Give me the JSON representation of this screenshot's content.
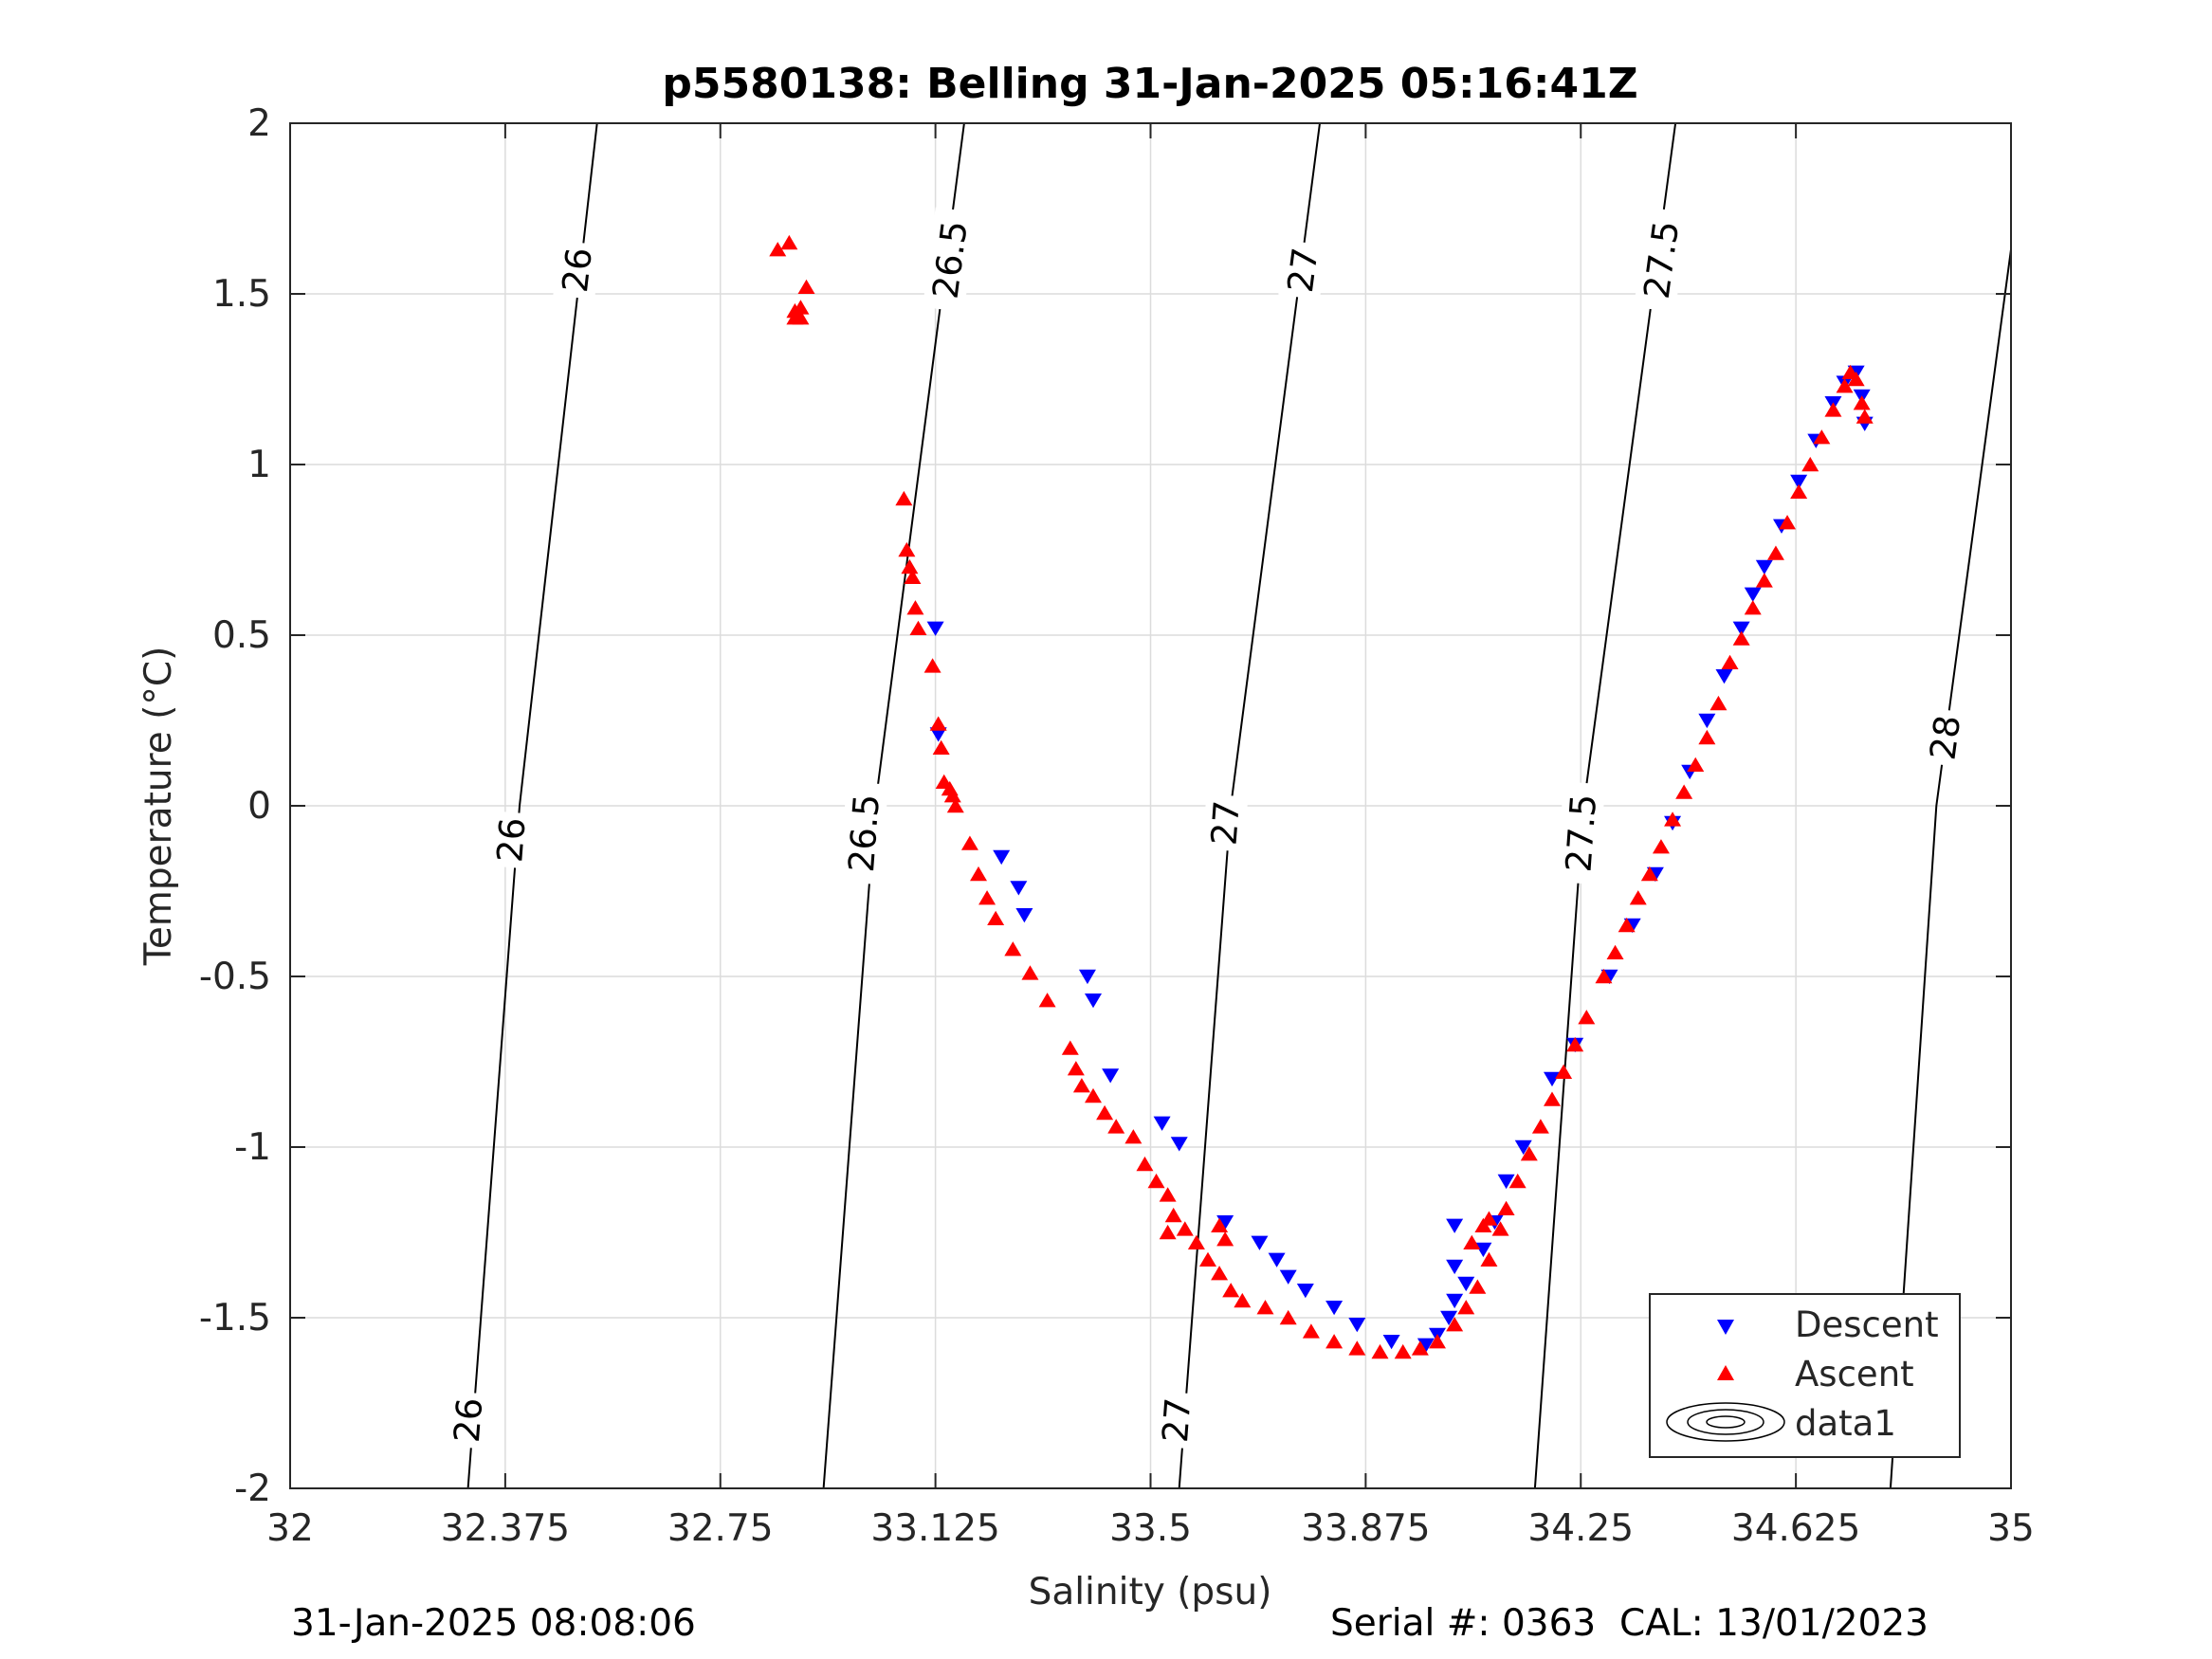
{
  "footer": {
    "left": "31-Jan-2025 08:08:06",
    "right": "Serial #: 0363  CAL: 13/01/2023"
  },
  "colors": {
    "descent": "#0000ff",
    "ascent": "#ff0000",
    "contour": "#000000",
    "grid": "#dcdcdc"
  },
  "chart_data": {
    "type": "scatter",
    "title": "p5580138: Belling 31-Jan-2025 05:16:41Z",
    "xlabel": "Salinity (psu)",
    "ylabel": "Temperature (°C)",
    "xlim": [
      32,
      35
    ],
    "ylim": [
      -2,
      2
    ],
    "x_ticks": [
      "32",
      "32.375",
      "32.75",
      "33.125",
      "33.5",
      "33.875",
      "34.25",
      "34.625",
      "35"
    ],
    "y_ticks": [
      "2",
      "1.5",
      "1",
      "0.5",
      "0",
      "-0.5",
      "-1",
      "-1.5",
      "-2"
    ],
    "grid": true,
    "legend": {
      "position": "bottom-right",
      "entries": [
        "Descent",
        "Ascent",
        "data1"
      ]
    },
    "contours": [
      {
        "level": "26",
        "points": [
          [
            32.31,
            -2.0
          ],
          [
            32.4,
            0.0
          ],
          [
            32.535,
            2.0
          ]
        ],
        "label_positions": [
          [
            32.31,
            -1.8
          ],
          [
            32.385,
            -0.1
          ],
          [
            32.5,
            1.57
          ]
        ]
      },
      {
        "level": "26.5",
        "points": [
          [
            32.93,
            -2.0
          ],
          [
            33.02,
            0.0
          ],
          [
            33.175,
            2.0
          ]
        ],
        "label_positions": [
          [
            33.0,
            -0.08
          ],
          [
            33.15,
            1.6
          ]
        ]
      },
      {
        "level": "27",
        "points": [
          [
            33.55,
            -2.0
          ],
          [
            33.64,
            0.0
          ],
          [
            33.795,
            2.0
          ]
        ],
        "label_positions": [
          [
            33.545,
            -1.8
          ],
          [
            33.63,
            -0.05
          ],
          [
            33.765,
            1.57
          ]
        ]
      },
      {
        "level": "27.5",
        "points": [
          [
            34.17,
            -2.0
          ],
          [
            34.255,
            0.0
          ],
          [
            34.415,
            2.0
          ]
        ],
        "label_positions": [
          [
            34.25,
            -0.08
          ],
          [
            34.39,
            1.6
          ]
        ]
      },
      {
        "level": "28",
        "points": [
          [
            34.79,
            -2.0
          ],
          [
            34.87,
            0.0
          ],
          [
            35.0,
            1.63
          ]
        ],
        "label_positions": [
          [
            34.795,
            -1.55
          ],
          [
            34.885,
            0.2
          ]
        ]
      }
    ],
    "series": [
      {
        "name": "Descent",
        "marker": "triangle-down",
        "points": [
          [
            33.125,
            0.52
          ],
          [
            33.13,
            0.21
          ],
          [
            33.24,
            -0.15
          ],
          [
            33.27,
            -0.24
          ],
          [
            33.28,
            -0.32
          ],
          [
            33.39,
            -0.5
          ],
          [
            33.4,
            -0.57
          ],
          [
            33.43,
            -0.79
          ],
          [
            33.52,
            -0.93
          ],
          [
            33.55,
            -0.99
          ],
          [
            33.63,
            -1.22
          ],
          [
            33.69,
            -1.28
          ],
          [
            33.72,
            -1.33
          ],
          [
            33.74,
            -1.38
          ],
          [
            33.77,
            -1.42
          ],
          [
            33.82,
            -1.47
          ],
          [
            33.86,
            -1.52
          ],
          [
            33.92,
            -1.57
          ],
          [
            33.98,
            -1.58
          ],
          [
            34.0,
            -1.55
          ],
          [
            34.02,
            -1.5
          ],
          [
            34.03,
            -1.45
          ],
          [
            34.05,
            -1.4
          ],
          [
            34.08,
            -1.3
          ],
          [
            34.1,
            -1.22
          ],
          [
            34.03,
            -1.23
          ],
          [
            34.03,
            -1.35
          ],
          [
            34.12,
            -1.1
          ],
          [
            34.15,
            -1.0
          ],
          [
            34.2,
            -0.8
          ],
          [
            34.24,
            -0.7
          ],
          [
            34.3,
            -0.5
          ],
          [
            34.34,
            -0.35
          ],
          [
            34.38,
            -0.2
          ],
          [
            34.41,
            -0.05
          ],
          [
            34.44,
            0.1
          ],
          [
            34.47,
            0.25
          ],
          [
            34.5,
            0.38
          ],
          [
            34.53,
            0.52
          ],
          [
            34.55,
            0.62
          ],
          [
            34.57,
            0.7
          ],
          [
            34.6,
            0.82
          ],
          [
            34.63,
            0.95
          ],
          [
            34.66,
            1.07
          ],
          [
            34.69,
            1.18
          ],
          [
            34.71,
            1.24
          ],
          [
            34.73,
            1.27
          ],
          [
            34.74,
            1.2
          ],
          [
            34.745,
            1.12
          ]
        ]
      },
      {
        "name": "Ascent",
        "marker": "triangle-up",
        "points": [
          [
            32.85,
            1.63
          ],
          [
            32.87,
            1.65
          ],
          [
            32.88,
            1.43
          ],
          [
            32.88,
            1.45
          ],
          [
            32.89,
            1.46
          ],
          [
            32.9,
            1.52
          ],
          [
            32.89,
            1.43
          ],
          [
            33.07,
            0.9
          ],
          [
            33.075,
            0.75
          ],
          [
            33.08,
            0.7
          ],
          [
            33.085,
            0.67
          ],
          [
            33.09,
            0.58
          ],
          [
            33.095,
            0.52
          ],
          [
            33.12,
            0.41
          ],
          [
            33.13,
            0.24
          ],
          [
            33.135,
            0.17
          ],
          [
            33.14,
            0.07
          ],
          [
            33.15,
            0.05
          ],
          [
            33.155,
            0.03
          ],
          [
            33.16,
            0.0
          ],
          [
            33.185,
            -0.11
          ],
          [
            33.2,
            -0.2
          ],
          [
            33.215,
            -0.27
          ],
          [
            33.23,
            -0.33
          ],
          [
            33.26,
            -0.42
          ],
          [
            33.29,
            -0.49
          ],
          [
            33.32,
            -0.57
          ],
          [
            33.36,
            -0.71
          ],
          [
            33.37,
            -0.77
          ],
          [
            33.38,
            -0.82
          ],
          [
            33.4,
            -0.85
          ],
          [
            33.42,
            -0.9
          ],
          [
            33.44,
            -0.94
          ],
          [
            33.47,
            -0.97
          ],
          [
            33.49,
            -1.05
          ],
          [
            33.51,
            -1.1
          ],
          [
            33.53,
            -1.14
          ],
          [
            33.54,
            -1.2
          ],
          [
            33.56,
            -1.24
          ],
          [
            33.58,
            -1.28
          ],
          [
            33.6,
            -1.33
          ],
          [
            33.62,
            -1.37
          ],
          [
            33.64,
            -1.42
          ],
          [
            33.66,
            -1.45
          ],
          [
            33.7,
            -1.47
          ],
          [
            33.74,
            -1.5
          ],
          [
            33.78,
            -1.54
          ],
          [
            33.82,
            -1.57
          ],
          [
            33.86,
            -1.59
          ],
          [
            33.9,
            -1.6
          ],
          [
            33.94,
            -1.6
          ],
          [
            33.97,
            -1.59
          ],
          [
            34.0,
            -1.57
          ],
          [
            34.03,
            -1.52
          ],
          [
            34.05,
            -1.47
          ],
          [
            34.07,
            -1.41
          ],
          [
            34.09,
            -1.33
          ],
          [
            34.11,
            -1.24
          ],
          [
            34.12,
            -1.18
          ],
          [
            34.14,
            -1.1
          ],
          [
            34.16,
            -1.02
          ],
          [
            34.18,
            -0.94
          ],
          [
            34.2,
            -0.86
          ],
          [
            34.22,
            -0.78
          ],
          [
            34.24,
            -0.7
          ],
          [
            34.26,
            -0.62
          ],
          [
            34.29,
            -0.5
          ],
          [
            34.31,
            -0.43
          ],
          [
            34.33,
            -0.35
          ],
          [
            34.35,
            -0.27
          ],
          [
            34.37,
            -0.2
          ],
          [
            34.39,
            -0.12
          ],
          [
            34.41,
            -0.04
          ],
          [
            34.43,
            0.04
          ],
          [
            34.45,
            0.12
          ],
          [
            34.47,
            0.2
          ],
          [
            34.49,
            0.3
          ],
          [
            34.51,
            0.42
          ],
          [
            34.53,
            0.49
          ],
          [
            34.55,
            0.58
          ],
          [
            34.57,
            0.66
          ],
          [
            34.59,
            0.74
          ],
          [
            34.61,
            0.83
          ],
          [
            34.63,
            0.92
          ],
          [
            34.65,
            1.0
          ],
          [
            34.67,
            1.08
          ],
          [
            34.69,
            1.16
          ],
          [
            34.71,
            1.23
          ],
          [
            34.72,
            1.27
          ],
          [
            34.73,
            1.25
          ],
          [
            34.74,
            1.18
          ],
          [
            34.745,
            1.14
          ],
          [
            33.62,
            -1.23
          ],
          [
            33.63,
            -1.27
          ],
          [
            33.53,
            -1.25
          ],
          [
            34.08,
            -1.23
          ],
          [
            34.09,
            -1.21
          ],
          [
            34.06,
            -1.28
          ]
        ]
      }
    ]
  }
}
